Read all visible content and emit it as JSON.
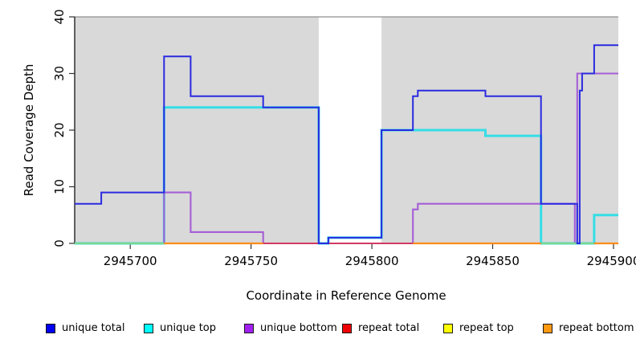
{
  "chart_data": {
    "type": "line",
    "step": true,
    "title": "",
    "xlabel": "Coordinate in Reference Genome",
    "ylabel": "Read Coverage Depth",
    "xlim": [
      2945677,
      2945902
    ],
    "ylim": [
      0,
      40
    ],
    "x_ticks": [
      2945700,
      2945750,
      2945800,
      2945850,
      2945900
    ],
    "y_ticks": [
      0,
      10,
      20,
      30,
      40
    ],
    "grid": false,
    "plot_bg_color": "#d9d9d9",
    "plot_border_color": "#8f8f8f",
    "shaded_regions": [
      [
        2945677,
        2945778
      ],
      [
        2945804,
        2945902
      ]
    ],
    "gap_region": [
      2945778,
      2945804
    ],
    "legend_position": "bottom",
    "series": [
      {
        "name": "unique total",
        "color": "#2a2ae0",
        "points": [
          [
            2945677,
            7
          ],
          [
            2945688,
            9
          ],
          [
            2945714,
            33
          ],
          [
            2945725,
            26
          ],
          [
            2945755,
            24
          ],
          [
            2945778,
            0
          ],
          [
            2945782,
            1
          ],
          [
            2945804,
            20
          ],
          [
            2945817,
            26
          ],
          [
            2945819,
            27
          ],
          [
            2945847,
            26
          ],
          [
            2945870,
            7
          ],
          [
            2945885,
            0
          ],
          [
            2945886,
            27
          ],
          [
            2945887,
            30
          ],
          [
            2945892,
            35
          ]
        ],
        "end_x": 2945902
      },
      {
        "name": "unique top",
        "color": "#35dde6",
        "points": [
          [
            2945677,
            0
          ],
          [
            2945714,
            24
          ],
          [
            2945778,
            0
          ],
          [
            2945782,
            1
          ],
          [
            2945804,
            20
          ],
          [
            2945847,
            19
          ],
          [
            2945870,
            0
          ],
          [
            2945892,
            5
          ]
        ],
        "end_x": 2945902
      },
      {
        "name": "unique bottom",
        "color": "#a55fd6",
        "points": [
          [
            2945677,
            0
          ],
          [
            2945714,
            9
          ],
          [
            2945725,
            2
          ],
          [
            2945755,
            0
          ],
          [
            2945817,
            6
          ],
          [
            2945819,
            7
          ],
          [
            2945884,
            0
          ],
          [
            2945885,
            30
          ]
        ],
        "end_x": 2945902,
        "late_from_x": 2945885
      },
      {
        "name": "repeat total",
        "color": "#d23b63",
        "value": 0,
        "visible_zero_segments": [
          [
            2945755,
            2945817
          ]
        ]
      },
      {
        "name": "repeat top",
        "color": "#79d78f",
        "value": 0,
        "visible_zero_segments": [
          [
            2945677,
            2945714
          ],
          [
            2945870,
            2945892
          ]
        ]
      },
      {
        "name": "repeat bottom",
        "color": "#ff8c1a",
        "value": 0,
        "visible_zero_segments": [
          [
            2945714,
            2945755
          ],
          [
            2945817,
            2945870
          ],
          [
            2945892,
            2945902
          ]
        ]
      }
    ],
    "legend": [
      {
        "label": "unique total",
        "color": "#0000ee"
      },
      {
        "label": "unique top",
        "color": "#00ffff"
      },
      {
        "label": "unique bottom",
        "color": "#a020f0"
      },
      {
        "label": "repeat total",
        "color": "#ee0000"
      },
      {
        "label": "repeat top",
        "color": "#ffff00"
      },
      {
        "label": "repeat bottom",
        "color": "#ff9912"
      }
    ],
    "legend_x_positions": [
      57,
      179,
      304,
      426,
      552,
      676
    ]
  }
}
